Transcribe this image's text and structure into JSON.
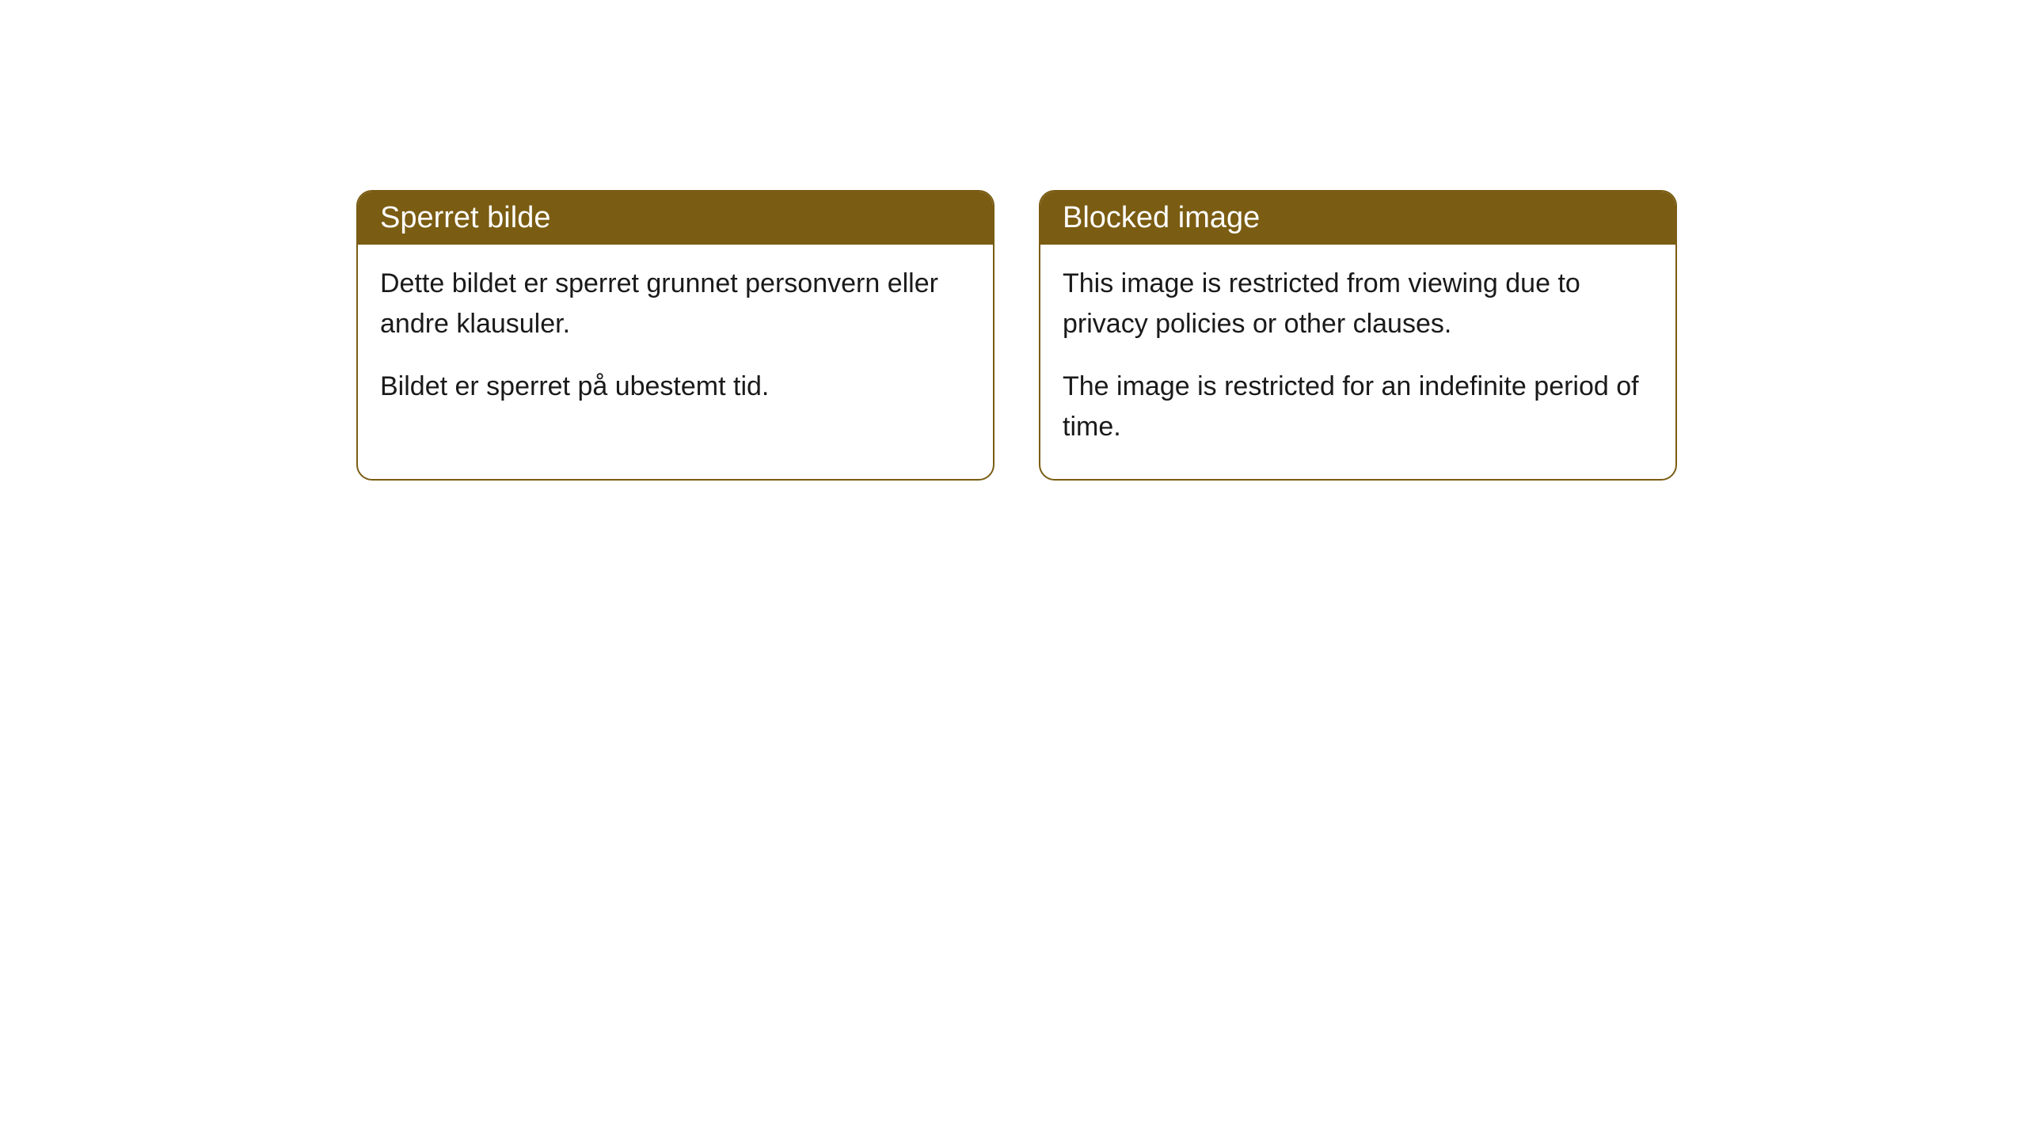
{
  "cards": [
    {
      "title": "Sperret bilde",
      "paragraph1": "Dette bildet er sperret grunnet personvern eller andre klausuler.",
      "paragraph2": "Bildet er sperret på ubestemt tid."
    },
    {
      "title": "Blocked image",
      "paragraph1": "This image is restricted from viewing due to privacy policies or other clauses.",
      "paragraph2": "The image is restricted for an indefinite period of time."
    }
  ],
  "styling": {
    "header_bg_color": "#7a5c13",
    "header_text_color": "#ffffff",
    "border_color": "#7a5c13",
    "body_text_color": "#1a1a1a",
    "card_bg_color": "#ffffff",
    "page_bg_color": "#ffffff",
    "border_radius": 20,
    "header_fontsize": 38,
    "body_fontsize": 34
  }
}
